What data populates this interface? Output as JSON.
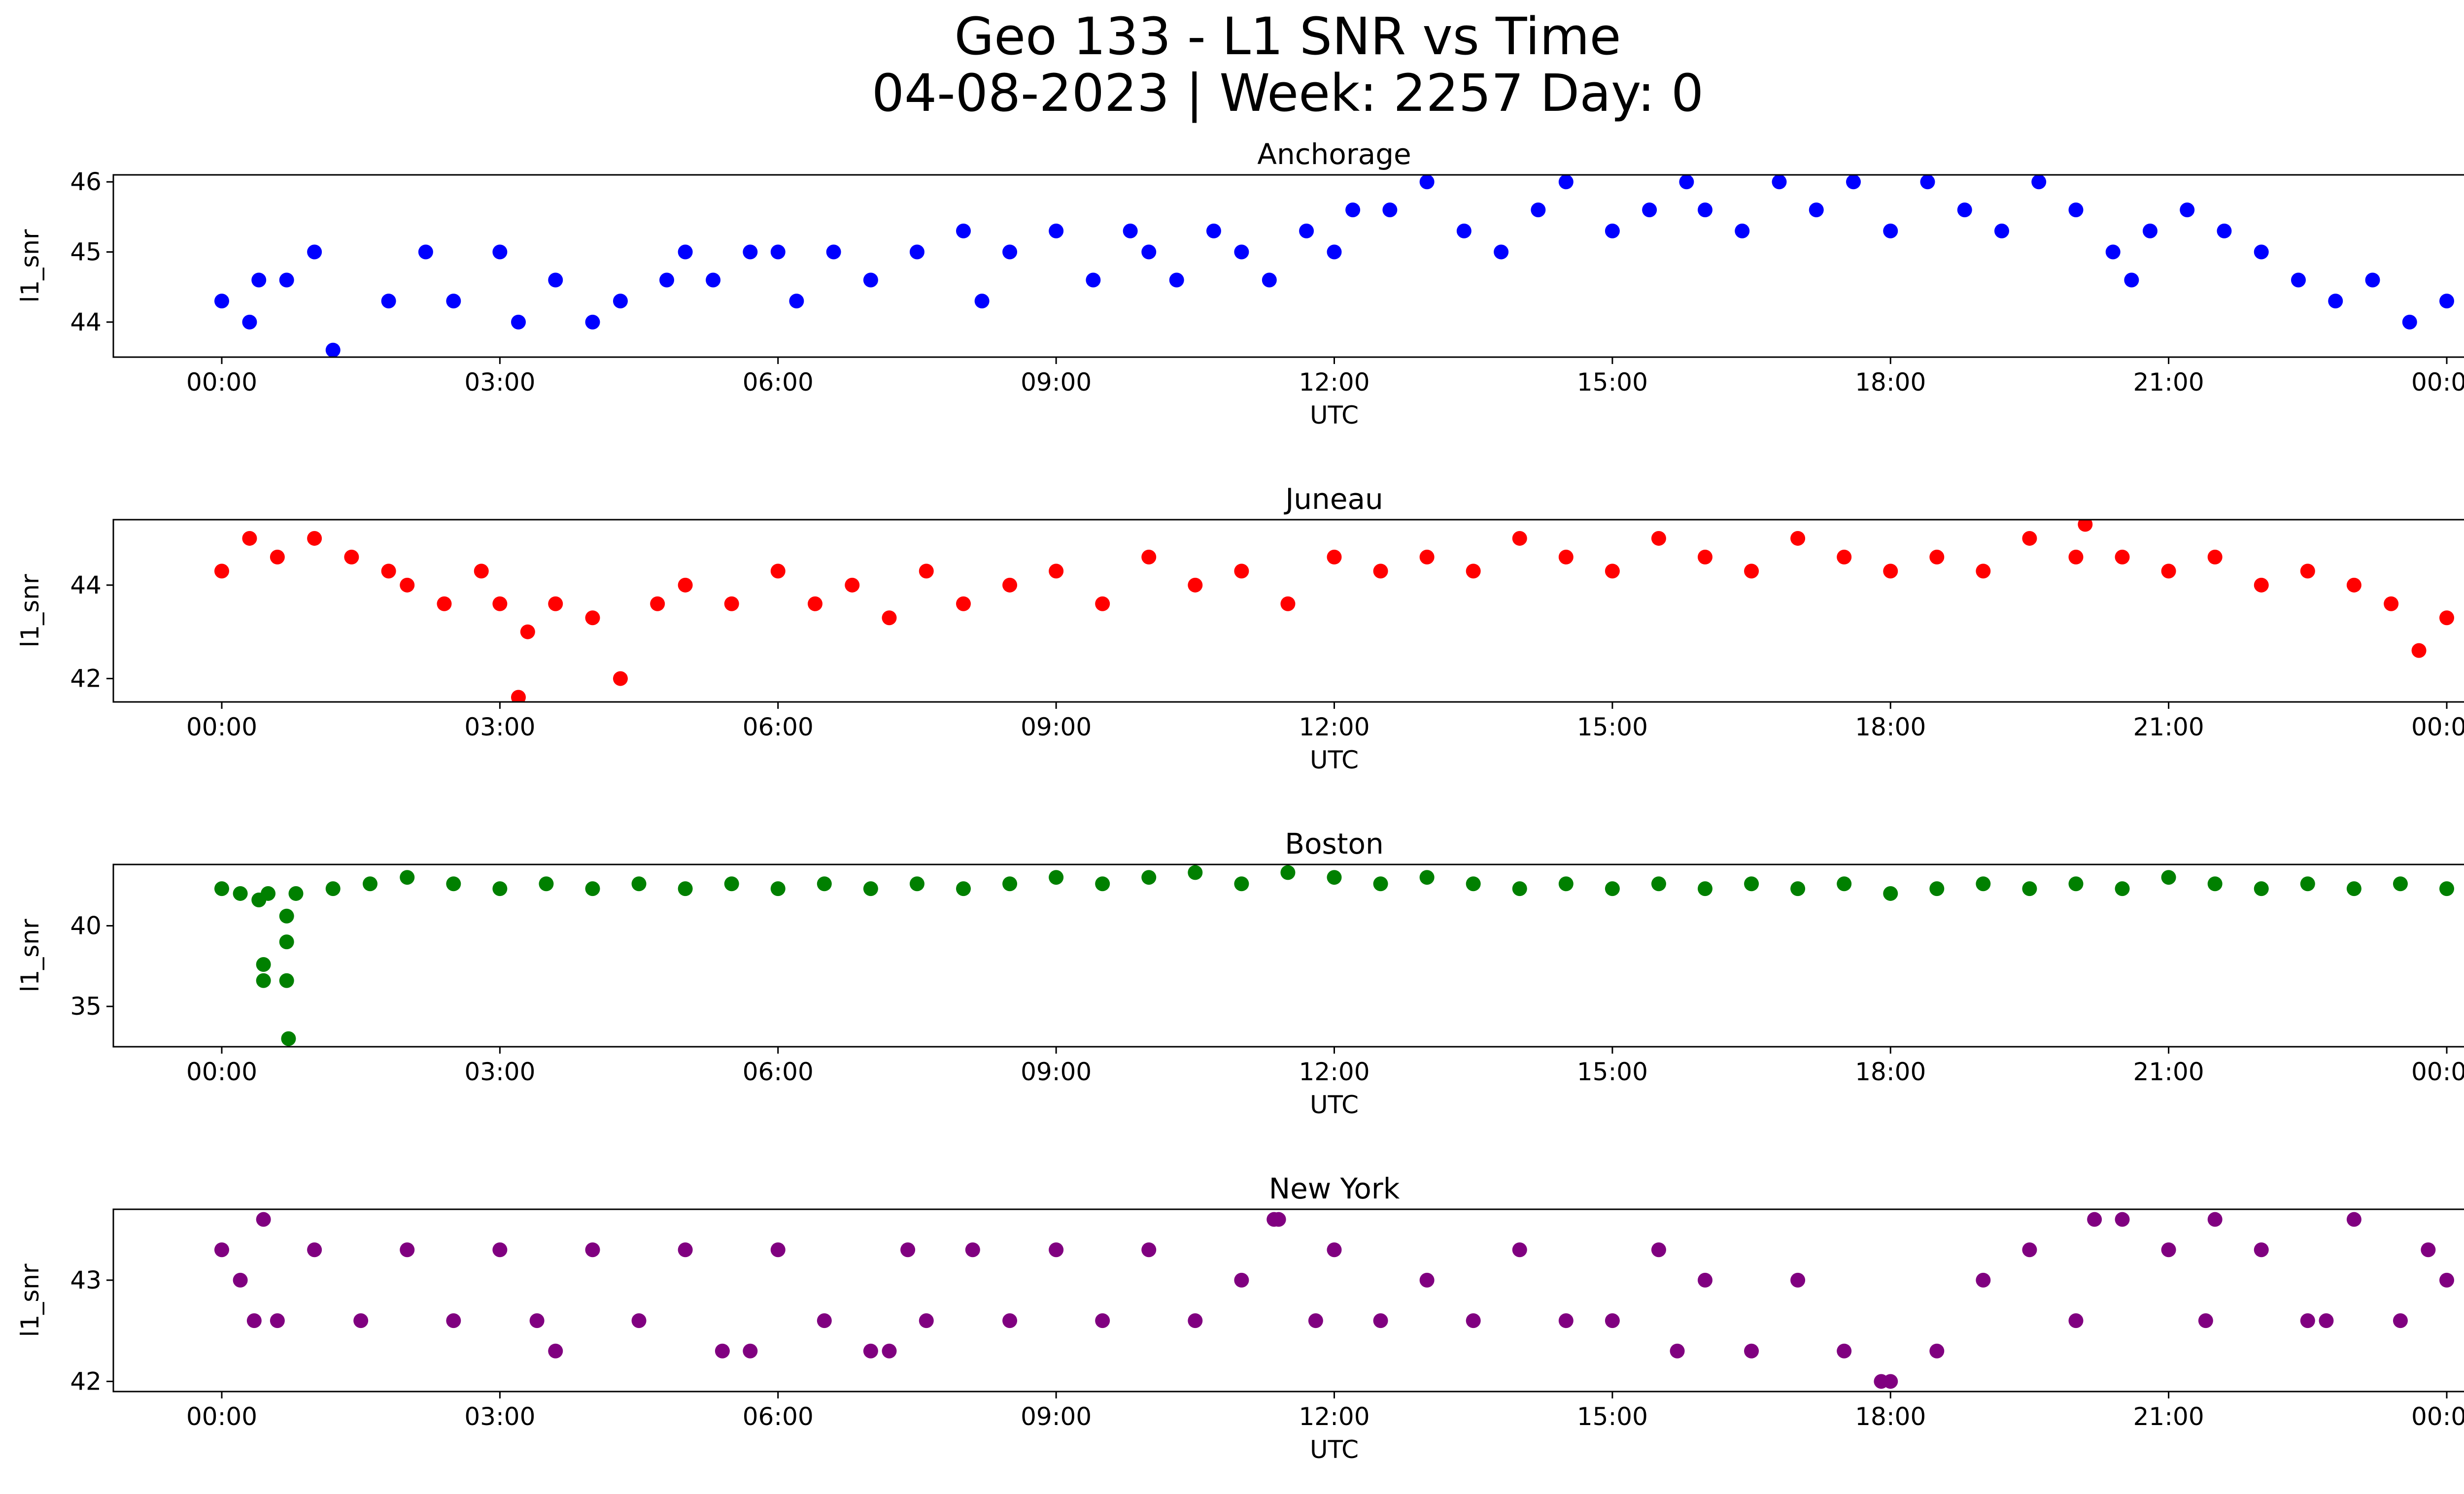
{
  "figure": {
    "title_line1": "Geo 133 - L1 SNR vs Time",
    "title_line2": "04-08-2023 | Week: 2257 Day: 0"
  },
  "chart_data": [
    {
      "type": "scatter",
      "title": "Anchorage",
      "xlabel": "UTC",
      "ylabel": "l1_snr",
      "color": "#0000ff",
      "xlim": [
        "00:00",
        "24:00"
      ],
      "xticks": [
        "00:00",
        "03:00",
        "06:00",
        "09:00",
        "12:00",
        "15:00",
        "18:00",
        "21:00",
        "00:00"
      ],
      "ylim": [
        43.5,
        46.1
      ],
      "yticks": [
        44,
        45,
        46
      ],
      "grid": false,
      "series": [
        {
          "x_hours": [
            0.0,
            0.3,
            0.7,
            1.0,
            0.4,
            1.2,
            1.8,
            2.2,
            2.5,
            3.0,
            3.2,
            3.6,
            4.0,
            4.3,
            4.8,
            5.0,
            5.3,
            5.7,
            6.0,
            6.2,
            6.6,
            7.0,
            7.5,
            8.0,
            8.2,
            8.5,
            9.0,
            9.4,
            9.8,
            10.0,
            10.3,
            10.7,
            11.0,
            11.3,
            11.7,
            12.0,
            12.2,
            12.6,
            13.0,
            13.4,
            13.8,
            14.2,
            14.5,
            15.0,
            15.4,
            15.8,
            16.0,
            16.4,
            16.8,
            17.2,
            17.6,
            18.0,
            18.4,
            18.8,
            19.2,
            19.6,
            20.0,
            20.4,
            20.6,
            20.8,
            21.2,
            21.6,
            22.0,
            22.4,
            22.8,
            23.2,
            23.6,
            24.0
          ],
          "y": [
            44.3,
            44.0,
            44.6,
            45.0,
            44.6,
            43.6,
            44.3,
            45.0,
            44.3,
            45.0,
            44.0,
            44.6,
            44.0,
            44.3,
            44.6,
            45.0,
            44.6,
            45.0,
            45.0,
            44.3,
            45.0,
            44.6,
            45.0,
            45.3,
            44.3,
            45.0,
            45.3,
            44.6,
            45.3,
            45.0,
            44.6,
            45.3,
            45.0,
            44.6,
            45.3,
            45.0,
            45.6,
            45.6,
            46.0,
            45.3,
            45.0,
            45.6,
            46.0,
            45.3,
            45.6,
            46.0,
            45.6,
            45.3,
            46.0,
            45.6,
            46.0,
            45.3,
            46.0,
            45.6,
            45.3,
            46.0,
            45.6,
            45.0,
            44.6,
            45.3,
            45.6,
            45.3,
            45.0,
            44.6,
            44.3,
            44.6,
            44.0,
            44.3
          ]
        }
      ]
    },
    {
      "type": "scatter",
      "title": "Juneau",
      "xlabel": "UTC",
      "ylabel": "l1_snr",
      "color": "#ff0000",
      "xlim": [
        "00:00",
        "24:00"
      ],
      "xticks": [
        "00:00",
        "03:00",
        "06:00",
        "09:00",
        "12:00",
        "15:00",
        "18:00",
        "21:00",
        "00:00"
      ],
      "ylim": [
        41.5,
        45.4
      ],
      "yticks": [
        42,
        44
      ],
      "grid": false,
      "series": [
        {
          "x_hours": [
            0.0,
            0.3,
            0.6,
            1.0,
            1.4,
            1.8,
            2.0,
            2.4,
            2.8,
            3.0,
            3.2,
            3.3,
            3.6,
            4.0,
            4.3,
            4.7,
            5.0,
            5.5,
            6.0,
            6.4,
            6.8,
            7.2,
            7.6,
            8.0,
            8.5,
            9.0,
            9.5,
            10.0,
            10.5,
            11.0,
            11.5,
            12.0,
            12.5,
            13.0,
            13.5,
            14.0,
            14.5,
            15.0,
            15.5,
            16.0,
            16.5,
            17.0,
            17.5,
            18.0,
            18.5,
            19.0,
            19.5,
            20.0,
            20.1,
            20.5,
            21.0,
            21.5,
            22.0,
            22.5,
            23.0,
            23.4,
            23.7,
            24.0
          ],
          "y": [
            44.3,
            45.0,
            44.6,
            45.0,
            44.6,
            44.3,
            44.0,
            43.6,
            44.3,
            43.6,
            41.6,
            43.0,
            43.6,
            43.3,
            42.0,
            43.6,
            44.0,
            43.6,
            44.3,
            43.6,
            44.0,
            43.3,
            44.3,
            43.6,
            44.0,
            44.3,
            43.6,
            44.6,
            44.0,
            44.3,
            43.6,
            44.6,
            44.3,
            44.6,
            44.3,
            45.0,
            44.6,
            44.3,
            45.0,
            44.6,
            44.3,
            45.0,
            44.6,
            44.3,
            44.6,
            44.3,
            45.0,
            44.6,
            45.3,
            44.6,
            44.3,
            44.6,
            44.0,
            44.3,
            44.0,
            43.6,
            42.6,
            43.3
          ]
        }
      ]
    },
    {
      "type": "scatter",
      "title": "Boston",
      "xlabel": "UTC",
      "ylabel": "l1_snr",
      "color": "#008000",
      "xlim": [
        "00:00",
        "24:00"
      ],
      "xticks": [
        "00:00",
        "03:00",
        "06:00",
        "09:00",
        "12:00",
        "15:00",
        "18:00",
        "21:00",
        "00:00"
      ],
      "ylim": [
        32.5,
        43.8
      ],
      "yticks": [
        35,
        40
      ],
      "grid": false,
      "series": [
        {
          "x_hours": [
            0.0,
            0.2,
            0.4,
            0.45,
            0.45,
            0.5,
            0.7,
            0.7,
            0.7,
            0.72,
            0.8,
            1.2,
            1.6,
            2.0,
            2.5,
            3.0,
            3.5,
            4.0,
            4.5,
            5.0,
            5.5,
            6.0,
            6.5,
            7.0,
            7.5,
            8.0,
            8.5,
            9.0,
            9.5,
            10.0,
            10.5,
            11.0,
            11.5,
            12.0,
            12.5,
            13.0,
            13.5,
            14.0,
            14.5,
            15.0,
            15.5,
            16.0,
            16.5,
            17.0,
            17.5,
            18.0,
            18.5,
            19.0,
            19.5,
            20.0,
            20.5,
            21.0,
            21.5,
            22.0,
            22.5,
            23.0,
            23.5,
            24.0
          ],
          "y": [
            42.3,
            42.0,
            41.6,
            37.6,
            36.6,
            42.0,
            40.6,
            39.0,
            36.6,
            33.0,
            42.0,
            42.3,
            42.6,
            43.0,
            42.6,
            42.3,
            42.6,
            42.3,
            42.6,
            42.3,
            42.6,
            42.3,
            42.6,
            42.3,
            42.6,
            42.3,
            42.6,
            43.0,
            42.6,
            43.0,
            43.3,
            42.6,
            43.3,
            43.0,
            42.6,
            43.0,
            42.6,
            42.3,
            42.6,
            42.3,
            42.6,
            42.3,
            42.6,
            42.3,
            42.6,
            42.0,
            42.3,
            42.6,
            42.3,
            42.6,
            42.3,
            43.0,
            42.6,
            42.3,
            42.6,
            42.3,
            42.6,
            42.3
          ]
        }
      ]
    },
    {
      "type": "scatter",
      "title": "New York",
      "xlabel": "UTC",
      "ylabel": "l1_snr",
      "color": "#800080",
      "xlim": [
        "00:00",
        "24:00"
      ],
      "xticks": [
        "00:00",
        "03:00",
        "06:00",
        "09:00",
        "12:00",
        "15:00",
        "18:00",
        "21:00",
        "00:00"
      ],
      "ylim": [
        41.9,
        43.7
      ],
      "yticks": [
        42,
        43
      ],
      "grid": false,
      "series": [
        {
          "x_hours": [
            0.0,
            0.2,
            0.35,
            0.45,
            0.6,
            1.0,
            1.5,
            2.0,
            2.5,
            3.0,
            3.4,
            3.6,
            4.0,
            4.5,
            5.0,
            5.4,
            5.7,
            6.0,
            6.5,
            7.0,
            7.2,
            7.4,
            7.6,
            8.1,
            8.5,
            9.0,
            9.5,
            10.0,
            10.5,
            11.0,
            11.35,
            11.4,
            11.8,
            12.0,
            12.5,
            13.0,
            13.5,
            14.0,
            14.5,
            15.0,
            15.5,
            15.7,
            16.0,
            16.5,
            17.0,
            17.5,
            17.9,
            18.0,
            18.5,
            19.0,
            19.5,
            20.0,
            20.2,
            20.5,
            21.0,
            21.4,
            21.5,
            22.0,
            22.5,
            22.7,
            23.0,
            23.5,
            23.8,
            24.0
          ],
          "y": [
            43.3,
            43.0,
            42.6,
            43.6,
            42.6,
            43.3,
            42.6,
            43.3,
            42.6,
            43.3,
            42.6,
            42.3,
            43.3,
            42.6,
            43.3,
            42.3,
            42.3,
            43.3,
            42.6,
            42.3,
            42.3,
            43.3,
            42.6,
            43.3,
            42.6,
            43.3,
            42.6,
            43.3,
            42.6,
            43.0,
            43.6,
            43.6,
            42.6,
            43.3,
            42.6,
            43.0,
            42.6,
            43.3,
            42.6,
            42.6,
            43.3,
            42.3,
            43.0,
            42.3,
            43.0,
            42.3,
            42.0,
            42.0,
            42.3,
            43.0,
            43.3,
            42.6,
            43.6,
            43.6,
            43.3,
            42.6,
            43.6,
            43.3,
            42.6,
            42.6,
            43.6,
            42.6,
            43.3,
            43.0
          ]
        }
      ]
    }
  ]
}
